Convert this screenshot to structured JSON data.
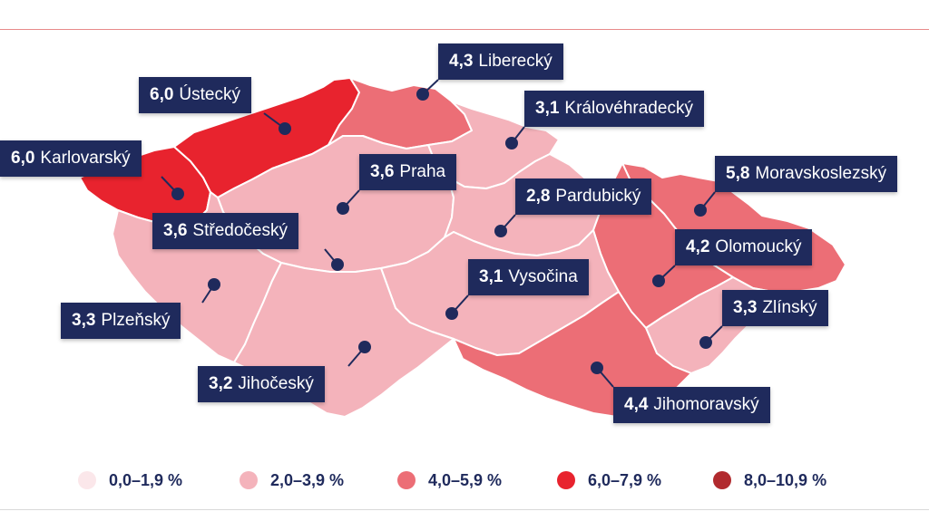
{
  "colors": {
    "navy": "#1f2a5c",
    "c0": "#fbe7ea",
    "c2": "#f4b3bb",
    "c4": "#ec6e76",
    "c6": "#e8232e",
    "c8": "#b12a2e",
    "border": "#ffffff"
  },
  "regions": [
    {
      "id": "karlovarsky",
      "name": "Karlovarský",
      "value": "6,0",
      "color_class": "c6"
    },
    {
      "id": "ustecky",
      "name": "Ústecký",
      "value": "6,0",
      "color_class": "c6"
    },
    {
      "id": "liberecky",
      "name": "Liberecký",
      "value": "4,3",
      "color_class": "c4"
    },
    {
      "id": "kralovehradecky",
      "name": "Královéhradecký",
      "value": "3,1",
      "color_class": "c2"
    },
    {
      "id": "praha",
      "name": "Praha",
      "value": "3,6",
      "color_class": "c2"
    },
    {
      "id": "stredocesky",
      "name": "Středočeský",
      "value": "3,6",
      "color_class": "c2"
    },
    {
      "id": "pardubicky",
      "name": "Pardubický",
      "value": "2,8",
      "color_class": "c2"
    },
    {
      "id": "moravskoslezsky",
      "name": "Moravskoslezský",
      "value": "5,8",
      "color_class": "c4"
    },
    {
      "id": "olomoucky",
      "name": "Olomoucký",
      "value": "4,2",
      "color_class": "c4"
    },
    {
      "id": "vysocina",
      "name": "Vysočina",
      "value": "3,1",
      "color_class": "c2"
    },
    {
      "id": "plzensky",
      "name": "Plzeňský",
      "value": "3,3",
      "color_class": "c2"
    },
    {
      "id": "zlinsky",
      "name": "Zlínský",
      "value": "3,3",
      "color_class": "c2"
    },
    {
      "id": "jihocesky",
      "name": "Jihočeský",
      "value": "3,2",
      "color_class": "c2"
    },
    {
      "id": "jihomoravsky",
      "name": "Jihomoravský",
      "value": "4,4",
      "color_class": "c4"
    }
  ],
  "legend": [
    {
      "label": "0,0–1,9 %",
      "color_class": "c0"
    },
    {
      "label": "2,0–3,9 %",
      "color_class": "c2"
    },
    {
      "label": "4,0–5,9 %",
      "color_class": "c4"
    },
    {
      "label": "6,0–7,9 %",
      "color_class": "c6"
    },
    {
      "label": "8,0–10,9 %",
      "color_class": "c8"
    }
  ]
}
